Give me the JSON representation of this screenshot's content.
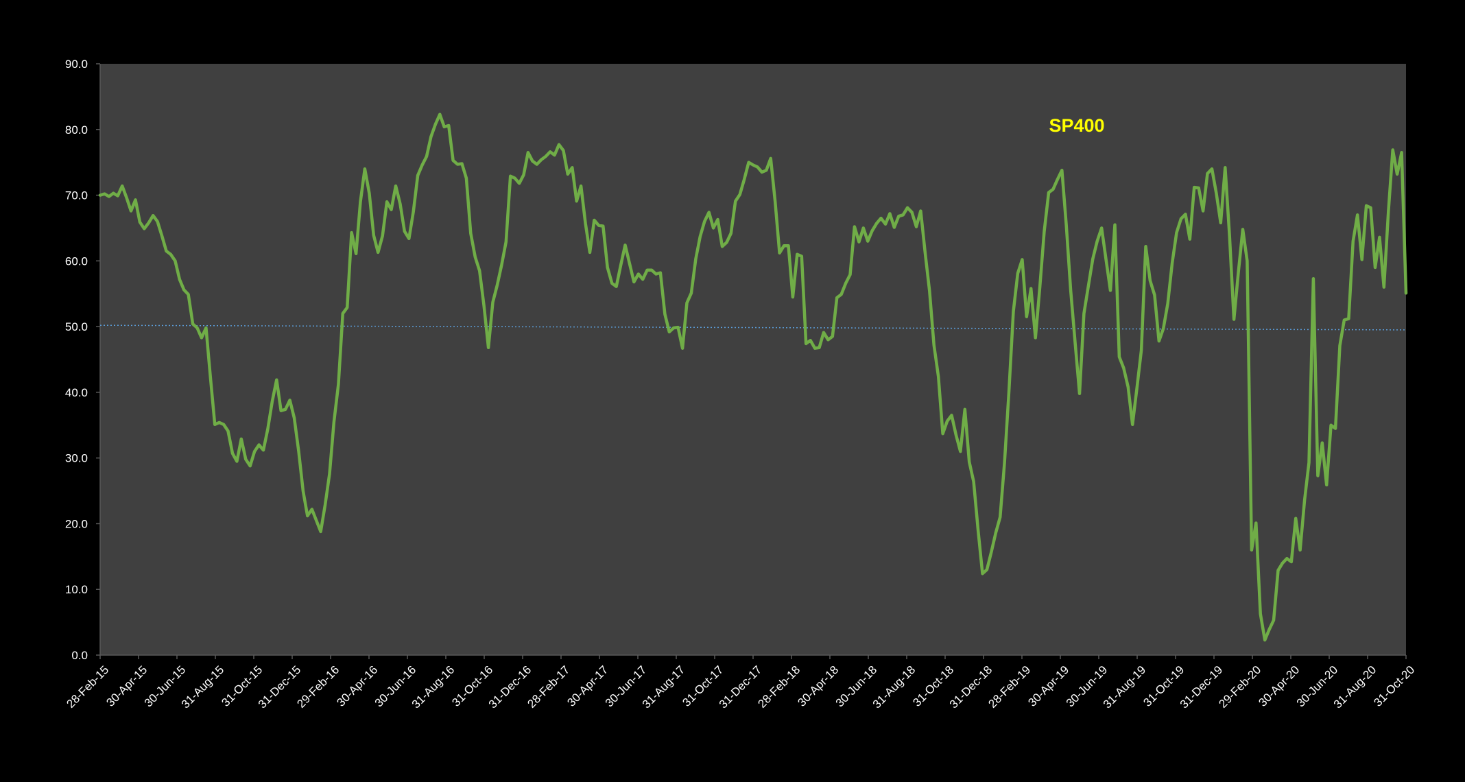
{
  "chart_data": {
    "type": "line",
    "title": "",
    "annotation": "SP400",
    "xlabel": "",
    "ylabel": "",
    "ylim": [
      0,
      90
    ],
    "y_ticks": [
      "0.0",
      "10.0",
      "20.0",
      "30.0",
      "40.0",
      "50.0",
      "60.0",
      "70.0",
      "80.0",
      "90.0"
    ],
    "x_ticks": [
      "28-Feb-15",
      "30-Apr-15",
      "30-Jun-15",
      "31-Aug-15",
      "31-Oct-15",
      "31-Dec-15",
      "29-Feb-16",
      "30-Apr-16",
      "30-Jun-16",
      "31-Aug-16",
      "31-Oct-16",
      "31-Dec-16",
      "28-Feb-17",
      "30-Apr-17",
      "30-Jun-17",
      "31-Aug-17",
      "31-Oct-17",
      "31-Dec-17",
      "28-Feb-18",
      "30-Apr-18",
      "30-Jun-18",
      "31-Aug-18",
      "31-Oct-18",
      "31-Dec-18",
      "28-Feb-19",
      "30-Apr-19",
      "30-Jun-19",
      "31-Aug-19",
      "31-Oct-19",
      "31-Dec-19",
      "29-Feb-20",
      "30-Apr-20",
      "30-Jun-20",
      "31-Aug-20",
      "31-Oct-20"
    ],
    "grid": false,
    "legend": "none",
    "colors": {
      "background": "#000000",
      "plot_area": "#404040",
      "series_line": "#70AD47",
      "reference_line": "#5B9BD5",
      "axis_text": "#FFFFFF",
      "annotation": "#FFFF00"
    },
    "reference_line": {
      "y_start": 50.2,
      "y_end": 49.5
    },
    "series": [
      {
        "values": [
          70.0,
          70.2,
          69.8,
          70.3,
          69.9,
          71.4,
          69.6,
          67.6,
          69.3,
          65.9,
          64.9,
          65.8,
          66.9,
          66.0,
          63.8,
          61.5,
          61.0,
          60.0,
          57.2,
          55.6,
          54.9,
          50.4,
          49.8,
          48.3,
          49.8,
          42.3,
          35.1,
          35.4,
          35.1,
          34.1,
          30.7,
          29.5,
          32.9,
          29.8,
          28.8,
          31.0,
          32.0,
          31.2,
          34.4,
          38.6,
          41.9,
          37.2,
          37.4,
          38.8,
          36.1,
          31.0,
          25.0,
          21.2,
          22.2,
          20.5,
          18.8,
          22.9,
          27.6,
          35.5,
          41.2,
          52.0,
          52.9,
          64.3,
          61.1,
          69.0,
          74.0,
          70.3,
          63.9,
          61.3,
          63.8,
          69.0,
          67.8,
          71.4,
          68.7,
          64.5,
          63.4,
          67.5,
          73.0,
          74.6,
          75.9,
          78.9,
          80.8,
          82.3,
          80.4,
          80.6,
          75.3,
          74.7,
          74.8,
          72.6,
          64.2,
          60.6,
          58.5,
          53.2,
          46.8,
          53.7,
          56.3,
          59.4,
          62.9,
          72.9,
          72.6,
          71.8,
          73.1,
          76.5,
          75.2,
          74.7,
          75.4,
          75.9,
          76.6,
          76.1,
          77.7,
          76.8,
          73.2,
          74.2,
          69.1,
          71.4,
          65.7,
          61.3,
          66.2,
          65.4,
          65.3,
          59.0,
          56.6,
          56.1,
          59.3,
          62.4,
          59.6,
          56.8,
          58.0,
          57.2,
          58.6,
          58.6,
          58.0,
          58.2,
          51.9,
          49.2,
          49.8,
          49.9,
          46.7,
          53.6,
          55.1,
          60.3,
          63.7,
          66.0,
          67.4,
          65.0,
          66.3,
          62.2,
          62.8,
          64.2,
          69.1,
          70.1,
          72.4,
          75.0,
          74.6,
          74.3,
          73.5,
          73.8,
          75.6,
          69.0,
          61.2,
          62.3,
          62.3,
          54.5,
          61.0,
          60.7,
          47.4,
          47.9,
          46.7,
          46.8,
          49.1,
          48.0,
          48.5,
          54.4,
          54.9,
          56.6,
          57.9,
          65.2,
          62.9,
          65.0,
          63.0,
          64.6,
          65.7,
          66.5,
          65.6,
          67.2,
          65.1,
          66.8,
          67.0,
          68.1,
          67.4,
          65.2,
          67.6,
          61.2,
          55.4,
          47.2,
          42.4,
          33.7,
          35.6,
          36.5,
          33.5,
          31.0,
          37.4,
          29.4,
          26.4,
          19.0,
          12.4,
          13.0,
          15.7,
          18.6,
          21.0,
          29.3,
          40.2,
          52.3,
          58.1,
          60.2,
          51.5,
          55.8,
          48.3,
          56.0,
          64.5,
          70.4,
          70.9,
          72.4,
          73.8,
          65.4,
          55.5,
          47.5,
          39.8,
          52.0,
          56.2,
          60.3,
          63.0,
          65.0,
          60.2,
          55.5,
          65.5,
          45.4,
          43.7,
          40.8,
          35.1,
          40.6,
          46.4,
          62.2,
          57.0,
          54.8,
          47.8,
          49.7,
          53.5,
          59.7,
          64.3,
          66.4,
          67.1,
          63.3,
          71.2,
          71.1,
          67.6,
          73.3,
          74.0,
          70.3,
          65.8,
          74.2,
          63.8,
          51.1,
          58.3,
          64.8,
          60.0,
          16.0,
          20.1,
          6.3,
          2.3,
          3.9,
          5.3,
          12.9,
          14.0,
          14.7,
          14.2,
          20.8,
          16.0,
          23.6,
          29.3,
          57.3,
          27.3,
          32.3,
          25.9,
          35.0,
          34.5,
          47.1,
          51.0,
          51.2,
          63.0,
          67.0,
          60.2,
          68.4,
          68.1,
          59.0,
          63.6,
          56.0,
          67.5,
          76.9,
          73.2,
          76.5,
          55.1
        ]
      }
    ]
  }
}
